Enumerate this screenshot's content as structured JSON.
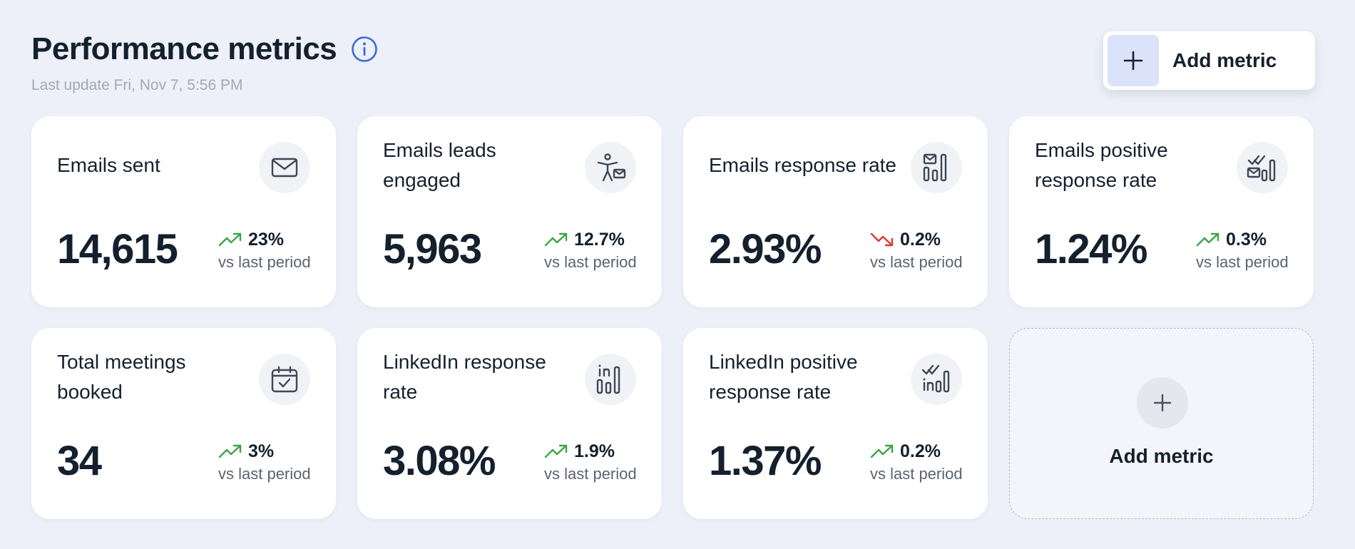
{
  "header": {
    "title": "Performance metrics",
    "last_update": "Last update Fri, Nov 7, 5:56 PM",
    "add_metric_label": "Add metric"
  },
  "colors": {
    "background": "#edf0f8",
    "accent": "#3d6bd6",
    "trend_up": "#3aa544",
    "trend_down": "#d33a3a"
  },
  "cards": [
    {
      "title": "Emails sent",
      "icon": "envelope-icon",
      "value": "14,615",
      "trend": "up",
      "change": "23%",
      "caption": "vs last period"
    },
    {
      "title": "Emails leads engaged",
      "icon": "person-mail-icon",
      "value": "5,963",
      "trend": "up",
      "change": "12.7%",
      "caption": "vs last period"
    },
    {
      "title": "Emails response rate",
      "icon": "mail-bar-chart-icon",
      "value": "2.93%",
      "trend": "down",
      "change": "0.2%",
      "caption": "vs last period"
    },
    {
      "title": "Emails positive response rate",
      "icon": "mail-check-chart-icon",
      "value": "1.24%",
      "trend": "up",
      "change": "0.3%",
      "caption": "vs last period"
    },
    {
      "title": "Total meetings booked",
      "icon": "calendar-check-icon",
      "value": "34",
      "trend": "up",
      "change": "3%",
      "caption": "vs last period"
    },
    {
      "title": "LinkedIn response rate",
      "icon": "linkedin-bar-chart-icon",
      "value": "3.08%",
      "trend": "up",
      "change": "1.9%",
      "caption": "vs last period"
    },
    {
      "title": "LinkedIn positive response rate",
      "icon": "linkedin-check-chart-icon",
      "value": "1.37%",
      "trend": "up",
      "change": "0.2%",
      "caption": "vs last period"
    }
  ],
  "add_card": {
    "label": "Add metric"
  }
}
